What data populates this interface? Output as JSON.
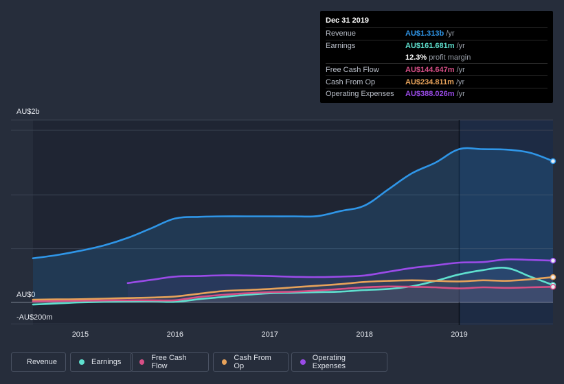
{
  "colors": {
    "revenue": "#2f96e8",
    "earnings": "#5fe0cf",
    "fcf": "#d74f86",
    "cfo": "#e7a25a",
    "opex": "#9a4be8",
    "grid": "#3a4252"
  },
  "tooltip": {
    "date": "Dec 31 2019",
    "rows": [
      {
        "label": "Revenue",
        "value": "AU$1.313b",
        "unit": "/yr",
        "color": "#2f96e8"
      },
      {
        "label": "Earnings",
        "value": "AU$161.681m",
        "unit": "/yr",
        "color": "#5fe0cf"
      },
      {
        "label": "",
        "value": "12.3%",
        "unit": "profit margin",
        "color": "#ffffff"
      },
      {
        "label": "Free Cash Flow",
        "value": "AU$144.647m",
        "unit": "/yr",
        "color": "#d74f86"
      },
      {
        "label": "Cash From Op",
        "value": "AU$234.811m",
        "unit": "/yr",
        "color": "#e7a25a"
      },
      {
        "label": "Operating Expenses",
        "value": "AU$388.026m",
        "unit": "/yr",
        "color": "#9a4be8"
      }
    ]
  },
  "legend": [
    {
      "key": "revenue",
      "label": "Revenue"
    },
    {
      "key": "earnings",
      "label": "Earnings"
    },
    {
      "key": "fcf",
      "label": "Free Cash Flow"
    },
    {
      "key": "cfo",
      "label": "Cash From Op"
    },
    {
      "key": "opex",
      "label": "Operating Expenses"
    }
  ],
  "chart_data": {
    "type": "line",
    "title": "",
    "xlabel": "",
    "ylabel": "",
    "currency": "AU$",
    "y_unit": "millions",
    "ylim": [
      -200,
      1600
    ],
    "xlim": [
      2014.5,
      2019.99
    ],
    "y_axis_labels": [
      {
        "value": 1600,
        "label": "AU$2b"
      },
      {
        "value": 0,
        "label": "AU$0"
      },
      {
        "value": -200,
        "label": "-AU$200m"
      }
    ],
    "x_ticks": [
      2015,
      2016,
      2017,
      2018,
      2019
    ],
    "x_tick_labels": [
      "2015",
      "2016",
      "2017",
      "2018",
      "2019"
    ],
    "highlight_from": 2019.0,
    "series": [
      {
        "name": "Revenue",
        "key": "revenue",
        "fill": true,
        "points": [
          [
            2014.5,
            410
          ],
          [
            2014.75,
            440
          ],
          [
            2015.0,
            480
          ],
          [
            2015.25,
            530
          ],
          [
            2015.5,
            600
          ],
          [
            2015.75,
            690
          ],
          [
            2016.0,
            780
          ],
          [
            2016.25,
            795
          ],
          [
            2016.5,
            800
          ],
          [
            2016.75,
            800
          ],
          [
            2017.0,
            800
          ],
          [
            2017.25,
            800
          ],
          [
            2017.5,
            802
          ],
          [
            2017.75,
            850
          ],
          [
            2018.0,
            900
          ],
          [
            2018.25,
            1050
          ],
          [
            2018.5,
            1200
          ],
          [
            2018.75,
            1300
          ],
          [
            2019.0,
            1425
          ],
          [
            2019.25,
            1424
          ],
          [
            2019.5,
            1420
          ],
          [
            2019.75,
            1390
          ],
          [
            2019.99,
            1313
          ]
        ]
      },
      {
        "name": "Earnings",
        "key": "earnings",
        "fill": false,
        "points": [
          [
            2014.5,
            -20
          ],
          [
            2014.75,
            -10
          ],
          [
            2015.0,
            0
          ],
          [
            2015.25,
            5
          ],
          [
            2015.5,
            8
          ],
          [
            2015.75,
            10
          ],
          [
            2016.0,
            5
          ],
          [
            2016.25,
            30
          ],
          [
            2016.5,
            50
          ],
          [
            2016.75,
            70
          ],
          [
            2017.0,
            85
          ],
          [
            2017.25,
            90
          ],
          [
            2017.5,
            95
          ],
          [
            2017.75,
            100
          ],
          [
            2018.0,
            115
          ],
          [
            2018.25,
            125
          ],
          [
            2018.5,
            150
          ],
          [
            2018.75,
            200
          ],
          [
            2019.0,
            260
          ],
          [
            2019.25,
            300
          ],
          [
            2019.5,
            320
          ],
          [
            2019.75,
            240
          ],
          [
            2019.99,
            161.681
          ]
        ]
      },
      {
        "name": "Free Cash Flow",
        "key": "fcf",
        "fill": false,
        "points": [
          [
            2014.5,
            10
          ],
          [
            2014.75,
            12
          ],
          [
            2015.0,
            15
          ],
          [
            2015.25,
            18
          ],
          [
            2015.5,
            20
          ],
          [
            2015.75,
            20
          ],
          [
            2016.0,
            20
          ],
          [
            2016.25,
            50
          ],
          [
            2016.5,
            70
          ],
          [
            2016.75,
            85
          ],
          [
            2017.0,
            95
          ],
          [
            2017.25,
            100
          ],
          [
            2017.5,
            110
          ],
          [
            2017.75,
            125
          ],
          [
            2018.0,
            140
          ],
          [
            2018.25,
            148
          ],
          [
            2018.5,
            145
          ],
          [
            2018.75,
            140
          ],
          [
            2019.0,
            130
          ],
          [
            2019.25,
            140
          ],
          [
            2019.5,
            135
          ],
          [
            2019.75,
            140
          ],
          [
            2019.99,
            144.647
          ]
        ]
      },
      {
        "name": "Cash From Op",
        "key": "cfo",
        "fill": false,
        "points": [
          [
            2014.5,
            25
          ],
          [
            2014.75,
            28
          ],
          [
            2015.0,
            30
          ],
          [
            2015.25,
            35
          ],
          [
            2015.5,
            40
          ],
          [
            2015.75,
            45
          ],
          [
            2016.0,
            55
          ],
          [
            2016.25,
            80
          ],
          [
            2016.5,
            105
          ],
          [
            2016.75,
            115
          ],
          [
            2017.0,
            125
          ],
          [
            2017.25,
            140
          ],
          [
            2017.5,
            155
          ],
          [
            2017.75,
            170
          ],
          [
            2018.0,
            190
          ],
          [
            2018.25,
            200
          ],
          [
            2018.5,
            205
          ],
          [
            2018.75,
            200
          ],
          [
            2019.0,
            195
          ],
          [
            2019.25,
            205
          ],
          [
            2019.5,
            200
          ],
          [
            2019.75,
            215
          ],
          [
            2019.99,
            234.811
          ]
        ]
      },
      {
        "name": "Operating Expenses",
        "key": "opex",
        "fill": false,
        "points": [
          [
            2015.5,
            180
          ],
          [
            2015.75,
            210
          ],
          [
            2016.0,
            240
          ],
          [
            2016.25,
            245
          ],
          [
            2016.5,
            252
          ],
          [
            2016.75,
            250
          ],
          [
            2017.0,
            245
          ],
          [
            2017.25,
            238
          ],
          [
            2017.5,
            235
          ],
          [
            2017.75,
            240
          ],
          [
            2018.0,
            250
          ],
          [
            2018.25,
            285
          ],
          [
            2018.5,
            320
          ],
          [
            2018.75,
            345
          ],
          [
            2019.0,
            370
          ],
          [
            2019.25,
            375
          ],
          [
            2019.5,
            400
          ],
          [
            2019.75,
            395
          ],
          [
            2019.99,
            388.026
          ]
        ]
      }
    ]
  }
}
